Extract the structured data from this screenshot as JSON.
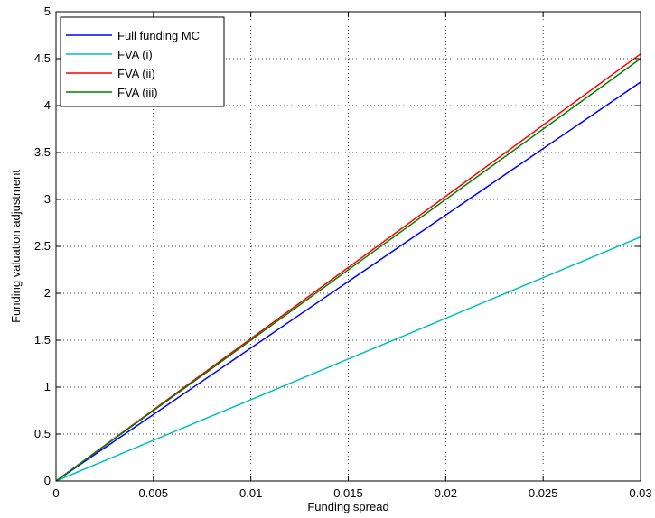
{
  "chart_data": {
    "type": "line",
    "xlabel": "Funding spread",
    "ylabel": "Funding valuation adjustment",
    "xlim": [
      0,
      0.03
    ],
    "ylim": [
      0,
      5
    ],
    "x_ticks": [
      "0",
      "0.005",
      "0.01",
      "0.015",
      "0.02",
      "0.025",
      "0.03"
    ],
    "y_ticks": [
      "0",
      "0.5",
      "1",
      "1.5",
      "2",
      "2.5",
      "3",
      "3.5",
      "4",
      "4.5",
      "5"
    ],
    "grid": true,
    "legend_position": "top-left",
    "x": [
      0,
      0.03
    ],
    "series": [
      {
        "name": "Full funding MC",
        "color": "#0000ff",
        "values": [
          0,
          4.25
        ]
      },
      {
        "name": "FVA (i)",
        "color": "#00bfbf",
        "values": [
          0,
          2.6
        ]
      },
      {
        "name": "FVA (ii)",
        "color": "#ff0000",
        "values": [
          0,
          4.55
        ]
      },
      {
        "name": "FVA (iii)",
        "color": "#008000",
        "values": [
          0,
          4.5
        ]
      }
    ]
  }
}
